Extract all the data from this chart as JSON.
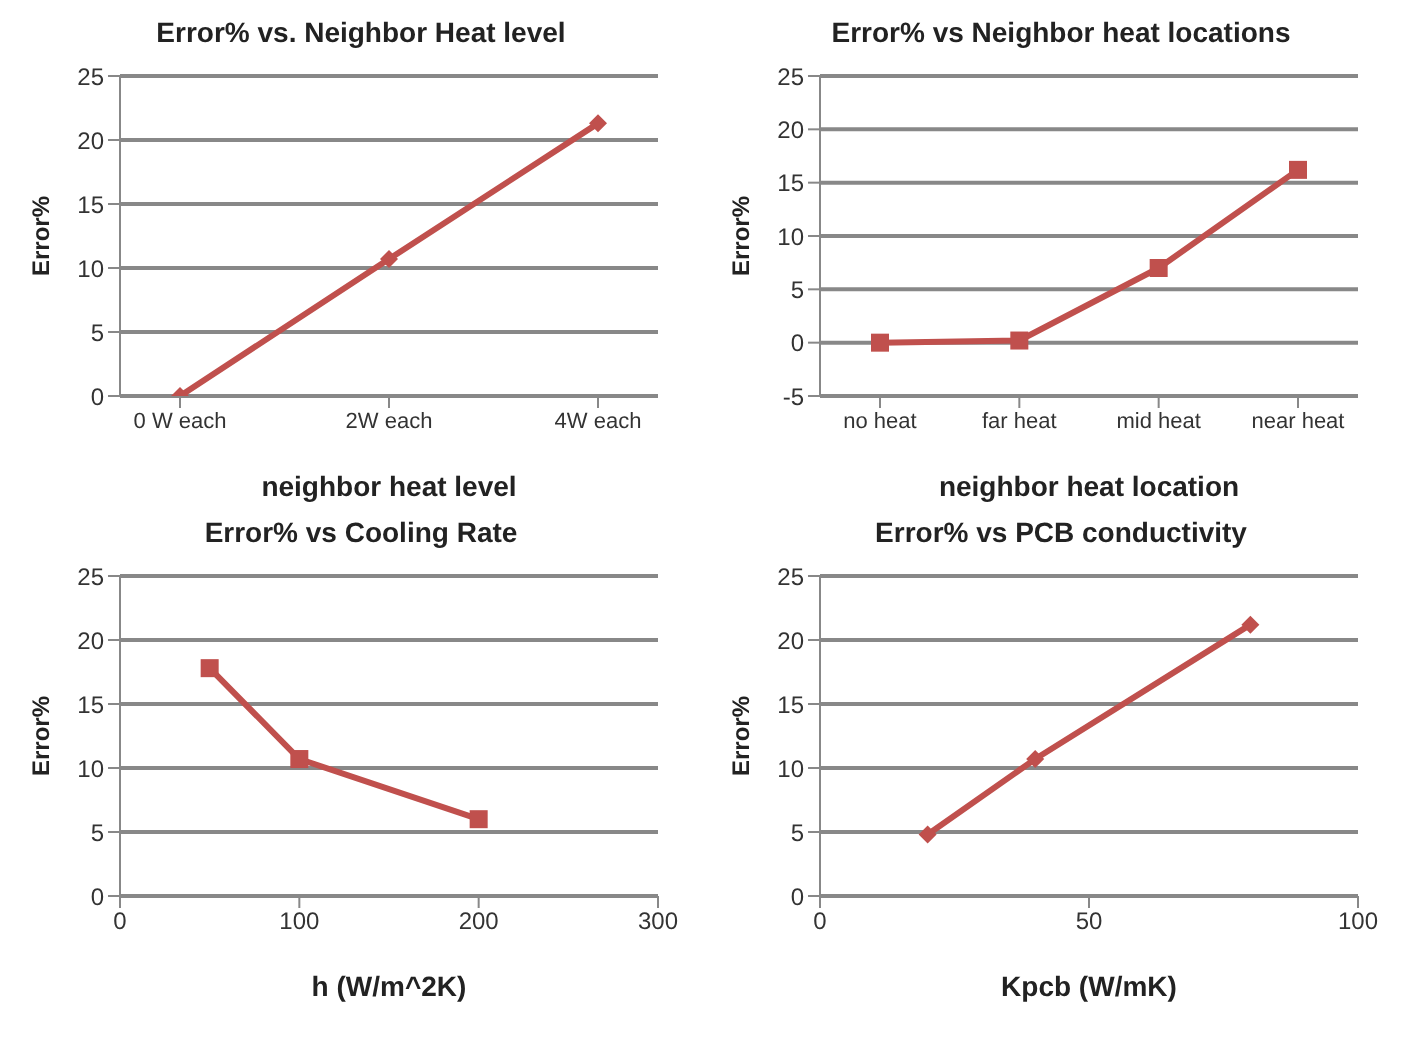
{
  "chart_data": [
    {
      "type": "line",
      "title": "Error% vs. Neighbor Heat level",
      "xlabel": "neighbor heat level",
      "ylabel": "Error%",
      "categories": [
        "0 W each",
        "2W each",
        "4W each"
      ],
      "values": [
        0,
        10.7,
        21.3
      ],
      "color": "#c0504d",
      "ylim": [
        0,
        25
      ],
      "yticks": [
        0,
        5,
        10,
        15,
        20,
        25
      ],
      "grid": "y",
      "marker": "diamond",
      "legend": false
    },
    {
      "type": "line",
      "title": "Error% vs Neighbor heat locations",
      "xlabel": "neighbor heat location",
      "ylabel": "Error%",
      "categories": [
        "no heat",
        "far heat",
        "mid heat",
        "near heat"
      ],
      "values": [
        0,
        0.2,
        7,
        16.2
      ],
      "color": "#c0504d",
      "ylim": [
        -5,
        25
      ],
      "yticks": [
        -5,
        0,
        5,
        10,
        15,
        20,
        25
      ],
      "grid": "y",
      "marker": "square",
      "legend": false
    },
    {
      "type": "line",
      "title": "Error% vs Cooling Rate",
      "xlabel": "h (W/m^2K)",
      "ylabel": "Error%",
      "x": [
        50,
        100,
        200
      ],
      "values": [
        17.8,
        10.7,
        6
      ],
      "color": "#c0504d",
      "xlim": [
        0,
        300
      ],
      "xticks": [
        0,
        100,
        200,
        300
      ],
      "ylim": [
        0,
        25
      ],
      "yticks": [
        0,
        5,
        10,
        15,
        20,
        25
      ],
      "grid": "y",
      "marker": "square",
      "legend": false
    },
    {
      "type": "line",
      "title": "Error% vs PCB conductivity",
      "xlabel": "Kpcb (W/mK)",
      "ylabel": "Error%",
      "x": [
        20,
        40,
        80
      ],
      "values": [
        4.8,
        10.7,
        21.2
      ],
      "color": "#c0504d",
      "xlim": [
        0,
        100
      ],
      "xticks": [
        0,
        50,
        100
      ],
      "ylim": [
        0,
        25
      ],
      "yticks": [
        0,
        5,
        10,
        15,
        20,
        25
      ],
      "grid": "y",
      "marker": "diamond",
      "legend": false
    }
  ]
}
